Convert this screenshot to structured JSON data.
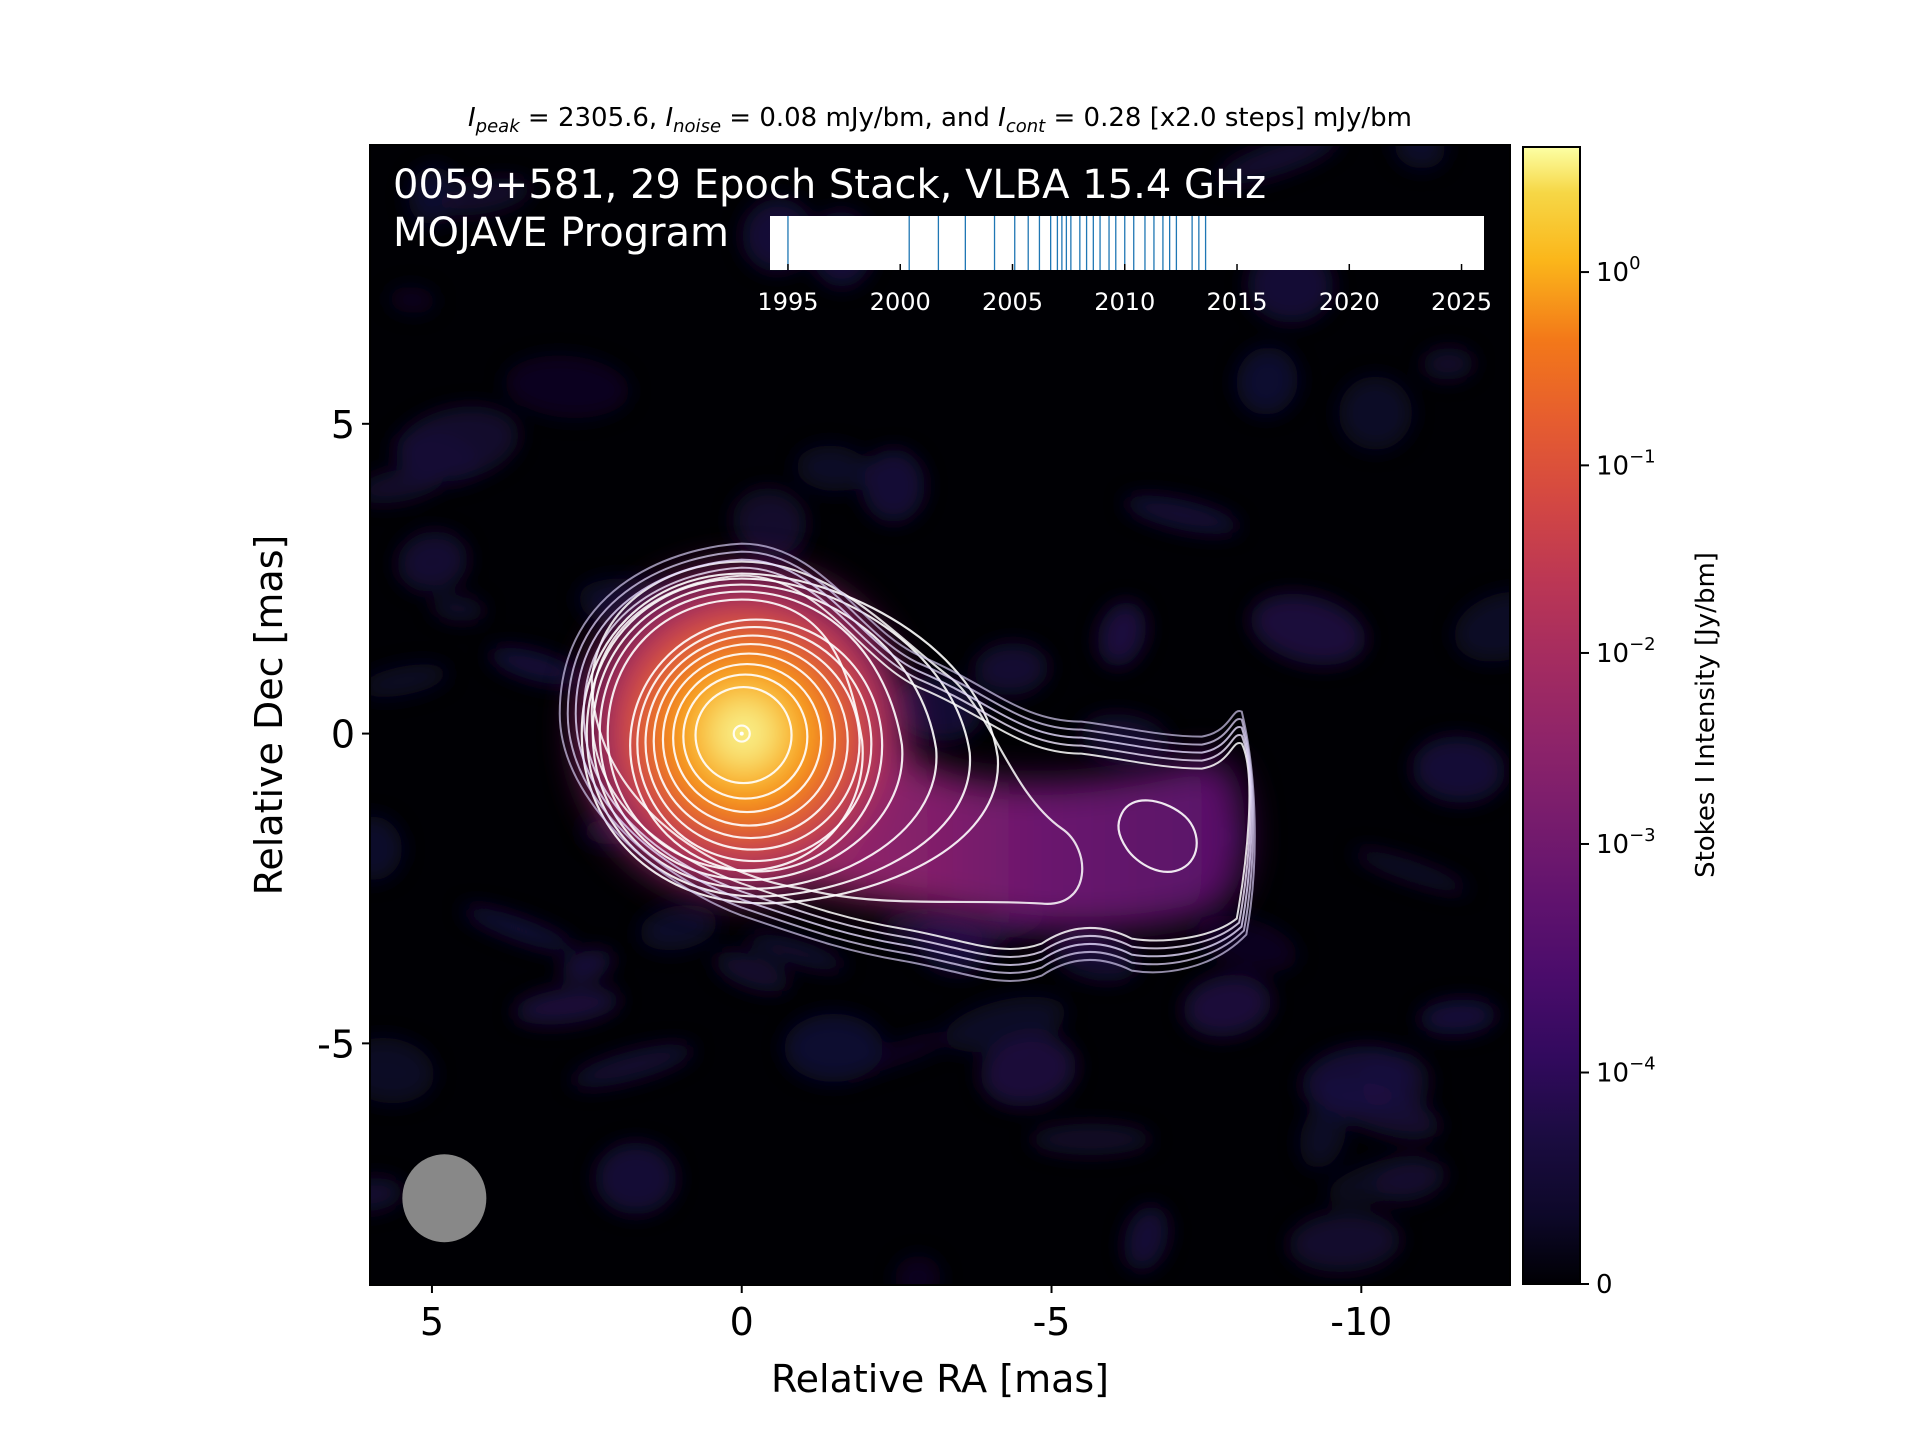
{
  "chart_data": {
    "type": "heatmap",
    "header": {
      "peak_symbol": "I",
      "peak_sub": "peak",
      "peak_value": " = 2305.6, ",
      "noise_symbol": "I",
      "noise_sub": "noise",
      "noise_value": " = 0.08 mJy/bm, and ",
      "cont_symbol": "I",
      "cont_sub": "cont",
      "cont_value": " = 0.28 [x2.0 steps] mJy/bm"
    },
    "annotation_lines": [
      "0059+581, 29 Epoch Stack, VLBA 15.4 GHz",
      "MOJAVE Program"
    ],
    "xlabel": "Relative RA [mas]",
    "ylabel": "Relative Dec [mas]",
    "xlim": [
      6,
      -12.4
    ],
    "ylim": [
      -8.9,
      9.5
    ],
    "x_ticks": [
      {
        "value": 5,
        "label": "5"
      },
      {
        "value": 0,
        "label": "0"
      },
      {
        "value": -5,
        "label": "-5"
      },
      {
        "value": -10,
        "label": "-10"
      }
    ],
    "y_ticks": [
      {
        "value": 5,
        "label": "5"
      },
      {
        "value": 0,
        "label": "0"
      },
      {
        "value": -5,
        "label": "-5"
      }
    ],
    "colorbar": {
      "label": "Stokes I Intensity [Jy/bm]",
      "scale": "symlog",
      "range": [
        0,
        2.3056
      ],
      "ticks": [
        {
          "value": 1,
          "base": "10",
          "exp": "0"
        },
        {
          "value": 0.1,
          "base": "10",
          "exp": "−1"
        },
        {
          "value": 0.01,
          "base": "10",
          "exp": "−2"
        },
        {
          "value": 0.001,
          "base": "10",
          "exp": "−3"
        },
        {
          "value": 0.0001,
          "base": "10",
          "exp": "−4"
        },
        {
          "value": 0,
          "label": "0"
        }
      ],
      "colormap": "inferno"
    },
    "contour_color": "#ffffff",
    "beam": {
      "x": 4.8,
      "y": -7.5,
      "color": "#888888"
    },
    "epoch_timeline": {
      "xlim": [
        1994.2,
        2026.0
      ],
      "ticks": [
        1995,
        2000,
        2005,
        2010,
        2015,
        2020,
        2025
      ],
      "epochs": [
        1995.0,
        2000.4,
        2001.7,
        2002.9,
        2004.2,
        2005.1,
        2005.7,
        2006.2,
        2006.7,
        2007.0,
        2007.2,
        2007.4,
        2007.6,
        2008.0,
        2008.3,
        2008.6,
        2008.9,
        2009.3,
        2009.6,
        2010.0,
        2010.4,
        2010.9,
        2011.3,
        2011.7,
        2012.0,
        2012.3,
        2013.0,
        2013.3,
        2013.6
      ],
      "line_color": "#1f77b4"
    }
  }
}
